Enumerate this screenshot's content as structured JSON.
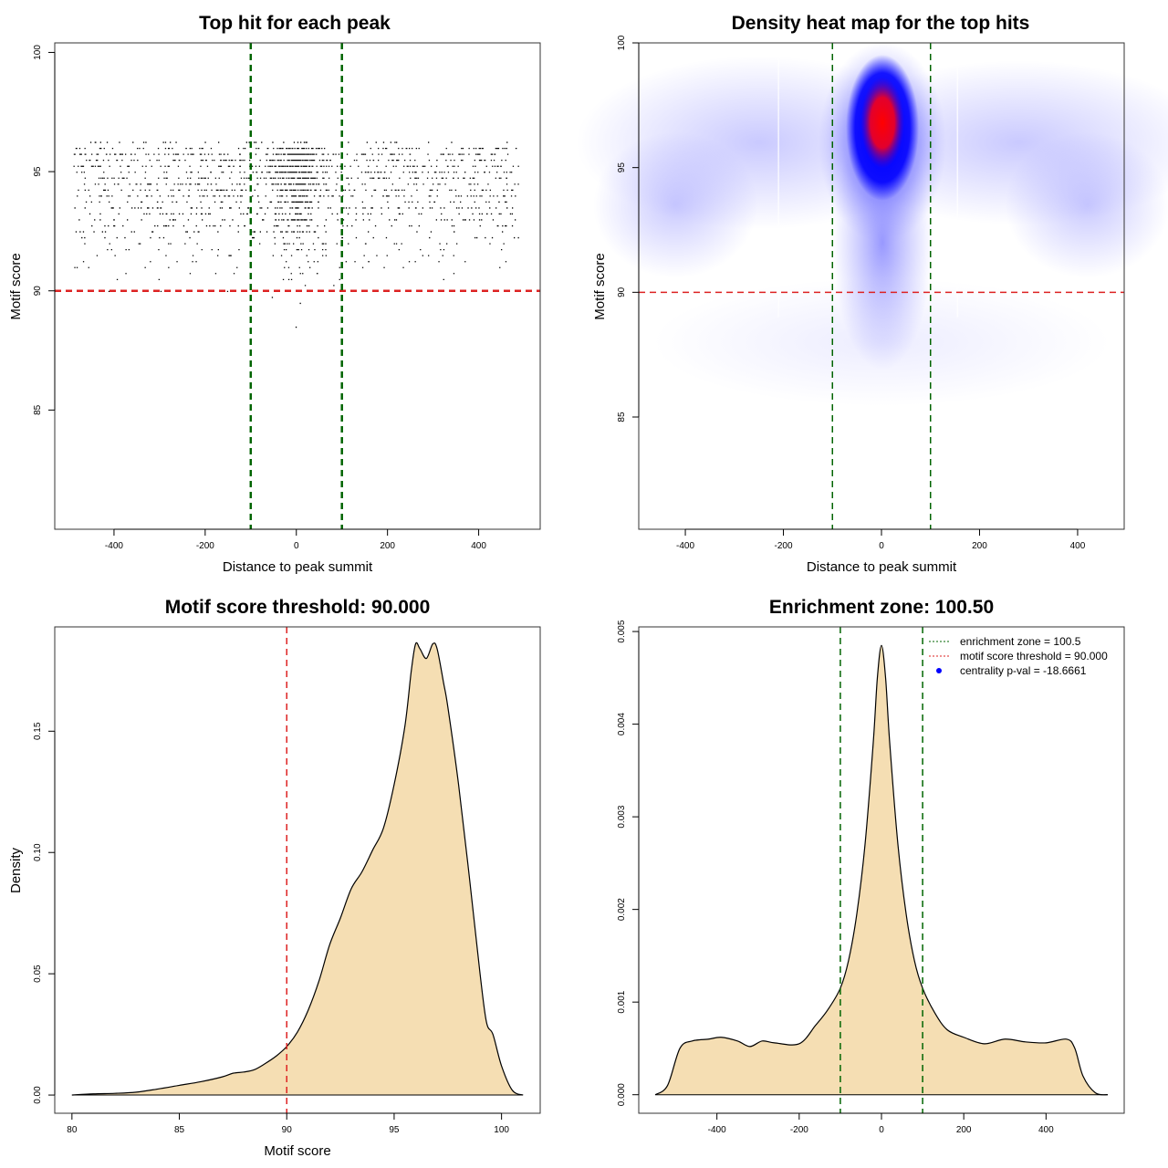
{
  "chart_data": [
    {
      "id": "top-hits-scatter",
      "type": "scatter",
      "title": "Top hit for each peak",
      "xlabel": "Distance to peak summit",
      "ylabel": "Motif score",
      "xlim": [
        -530,
        535
      ],
      "ylim": [
        80,
        100.4
      ],
      "xticks": [
        -400,
        -200,
        0,
        200,
        400
      ],
      "yticks": [
        85,
        90,
        95,
        100
      ],
      "grid": false,
      "point_color": "#000000",
      "point_count": 6500,
      "central_window_fraction": 0.24,
      "reference_lines": [
        {
          "axis": "y",
          "value": 90,
          "color": "#dd2222",
          "style": "dashed"
        },
        {
          "axis": "x",
          "value": -100,
          "color": "#006400",
          "style": "dashed"
        },
        {
          "axis": "x",
          "value": 100,
          "color": "#006400",
          "style": "dashed"
        }
      ]
    },
    {
      "id": "density-heatmap",
      "type": "heatmap",
      "title": "Density heat map for the top hits",
      "xlabel": "Distance to peak summit",
      "ylabel": "Motif score",
      "xlim": [
        -495,
        495
      ],
      "ylim": [
        80.5,
        100
      ],
      "xticks": [
        -400,
        -200,
        0,
        200,
        400
      ],
      "yticks": [
        85,
        90,
        95,
        100
      ],
      "grid": false,
      "colors": [
        "#ffffff",
        "#9999ff",
        "#0000ff",
        "#ff0000"
      ],
      "peak": {
        "x": 2,
        "y": 96.8
      },
      "reference_lines": [
        {
          "axis": "y",
          "value": 90,
          "color": "#dd2222",
          "style": "dashed"
        },
        {
          "axis": "x",
          "value": -100,
          "color": "#006400",
          "style": "dashed"
        },
        {
          "axis": "x",
          "value": 100,
          "color": "#006400",
          "style": "dashed"
        }
      ]
    },
    {
      "id": "motif-score-density",
      "type": "area",
      "title": "Motif score threshold: 90.000",
      "xlabel": "Motif score",
      "ylabel": "Density",
      "xlim": [
        79.2,
        101.8
      ],
      "ylim": [
        -0.0075,
        0.193
      ],
      "xticks": [
        80,
        85,
        90,
        95,
        100
      ],
      "yticks": [
        0.0,
        0.05,
        0.1,
        0.15
      ],
      "ytick_labels": [
        "0.00",
        "0.05",
        "0.10",
        "0.15"
      ],
      "grid": false,
      "fill_color": "#f5deb3",
      "x": [
        80,
        81,
        82,
        83,
        84,
        85,
        86,
        87,
        87.5,
        88,
        88.5,
        89,
        89.5,
        90,
        90.5,
        91,
        91.5,
        92,
        92.5,
        93,
        93.5,
        94,
        94.5,
        95,
        95.5,
        95.8,
        96,
        96.2,
        96.5,
        96.8,
        97,
        97.3,
        97.5,
        98,
        98.5,
        99,
        99.3,
        99.6,
        100,
        100.5,
        101
      ],
      "y": [
        0.0,
        0.0005,
        0.0007,
        0.0012,
        0.0025,
        0.004,
        0.0055,
        0.0075,
        0.009,
        0.0095,
        0.0105,
        0.013,
        0.016,
        0.02,
        0.026,
        0.035,
        0.047,
        0.062,
        0.073,
        0.085,
        0.092,
        0.101,
        0.11,
        0.128,
        0.152,
        0.175,
        0.186,
        0.184,
        0.18,
        0.186,
        0.184,
        0.17,
        0.16,
        0.128,
        0.09,
        0.05,
        0.03,
        0.025,
        0.012,
        0.002,
        0.0
      ],
      "reference_lines": [
        {
          "axis": "x",
          "value": 90,
          "color": "#dd2222",
          "style": "dashed"
        }
      ]
    },
    {
      "id": "enrichment-density",
      "type": "area",
      "title": "Enrichment zone: 100.50",
      "xlabel": "Distance to peak summit",
      "ylabel": "Density",
      "xlim": [
        -590,
        590
      ],
      "ylim": [
        -0.0002,
        0.00505
      ],
      "xticks": [
        -400,
        -200,
        0,
        200,
        400
      ],
      "yticks": [
        0.0,
        0.001,
        0.002,
        0.003,
        0.004,
        0.005
      ],
      "ytick_labels": [
        "0.000",
        "0.001",
        "0.002",
        "0.003",
        "0.004",
        "0.005"
      ],
      "grid": false,
      "fill_color": "#f5deb3",
      "x": [
        -550,
        -520,
        -490,
        -460,
        -420,
        -390,
        -350,
        -320,
        -290,
        -260,
        -200,
        -160,
        -130,
        -100,
        -80,
        -60,
        -40,
        -20,
        -10,
        0,
        10,
        20,
        40,
        60,
        80,
        100,
        130,
        160,
        200,
        250,
        300,
        350,
        400,
        450,
        470,
        490,
        520,
        550
      ],
      "y": [
        0.0,
        0.0001,
        0.0005,
        0.00058,
        0.0006,
        0.00062,
        0.00058,
        0.00052,
        0.00058,
        0.00056,
        0.00055,
        0.00075,
        0.00092,
        0.00115,
        0.00145,
        0.00195,
        0.0027,
        0.0038,
        0.0045,
        0.00485,
        0.0045,
        0.0038,
        0.0027,
        0.00195,
        0.00145,
        0.00115,
        0.00088,
        0.0007,
        0.00062,
        0.00055,
        0.0006,
        0.00057,
        0.00056,
        0.0006,
        0.0005,
        0.0002,
        2e-05,
        0.0
      ],
      "reference_lines": [
        {
          "axis": "x",
          "value": -100,
          "color": "#006400",
          "style": "dashed"
        },
        {
          "axis": "x",
          "value": 100,
          "color": "#006400",
          "style": "dashed"
        }
      ],
      "legend": {
        "position": "top-right",
        "items": [
          {
            "label": "enrichment zone = 100.5",
            "color": "#006400",
            "kind": "dotted-line"
          },
          {
            "label": "motif score threshold = 90.000",
            "color": "#dd2222",
            "kind": "dotted-line"
          },
          {
            "label": "centrality p-val = -18.6661",
            "color": "#0000ff",
            "kind": "point"
          }
        ]
      }
    }
  ]
}
